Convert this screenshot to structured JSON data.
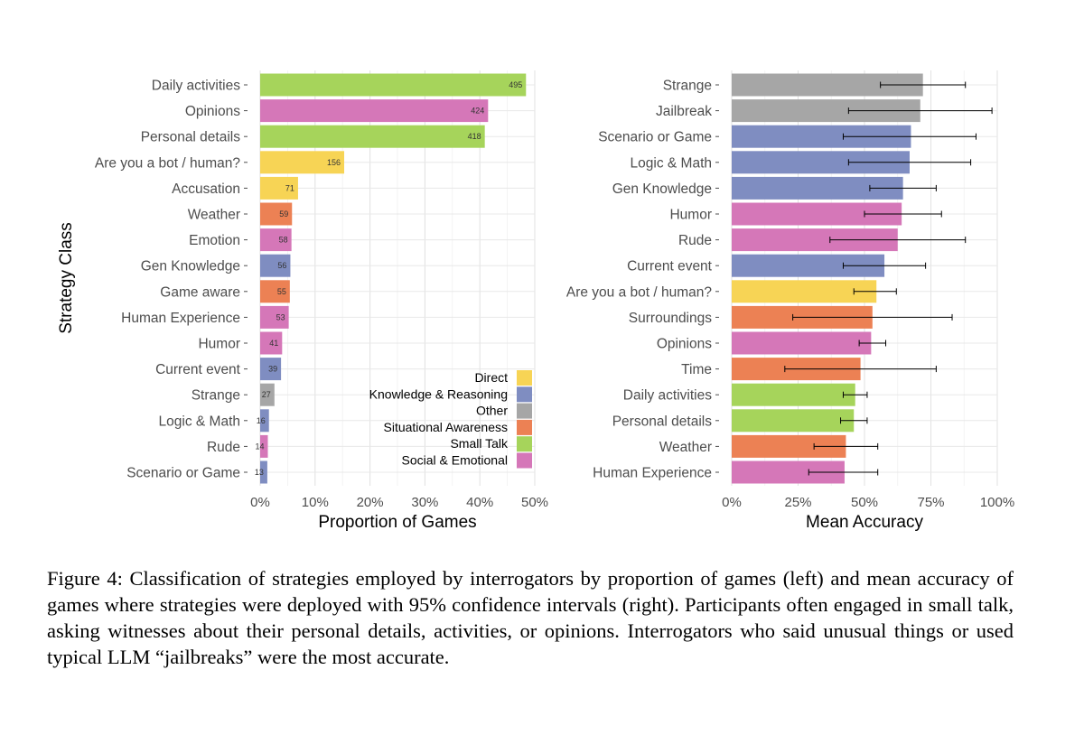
{
  "colors": {
    "Direct": "#f7d455",
    "Knowledge & Reasoning": "#7f8dc1",
    "Other": "#a6a6a6",
    "Situational Awareness": "#ec8154",
    "Small Talk": "#a6d45b",
    "Social & Emotional": "#d577b8"
  },
  "chart_data": [
    {
      "type": "bar",
      "orientation": "horizontal",
      "xlabel": "Proportion of Games",
      "ylabel": "Strategy Class",
      "xlim": [
        0,
        0.5
      ],
      "x_ticks": [
        "0%",
        "10%",
        "20%",
        "30%",
        "40%",
        "50%"
      ],
      "grid": true,
      "legend": {
        "placement": "bottom-right",
        "entries": [
          "Direct",
          "Knowledge & Reasoning",
          "Other",
          "Situational Awareness",
          "Small Talk",
          "Social & Emotional"
        ]
      },
      "bars": [
        {
          "label": "Daily activities",
          "count": 495,
          "value": 0.484,
          "group": "Small Talk"
        },
        {
          "label": "Opinions",
          "count": 424,
          "value": 0.415,
          "group": "Social & Emotional"
        },
        {
          "label": "Personal details",
          "count": 418,
          "value": 0.409,
          "group": "Small Talk"
        },
        {
          "label": "Are you a bot / human?",
          "count": 156,
          "value": 0.153,
          "group": "Direct"
        },
        {
          "label": "Accusation",
          "count": 71,
          "value": 0.069,
          "group": "Direct"
        },
        {
          "label": "Weather",
          "count": 59,
          "value": 0.058,
          "group": "Situational Awareness"
        },
        {
          "label": "Emotion",
          "count": 58,
          "value": 0.057,
          "group": "Social & Emotional"
        },
        {
          "label": "Gen Knowledge",
          "count": 56,
          "value": 0.055,
          "group": "Knowledge & Reasoning"
        },
        {
          "label": "Game aware",
          "count": 55,
          "value": 0.054,
          "group": "Situational Awareness"
        },
        {
          "label": "Human Experience",
          "count": 53,
          "value": 0.052,
          "group": "Social & Emotional"
        },
        {
          "label": "Humor",
          "count": 41,
          "value": 0.04,
          "group": "Social & Emotional"
        },
        {
          "label": "Current event",
          "count": 39,
          "value": 0.038,
          "group": "Knowledge & Reasoning"
        },
        {
          "label": "Strange",
          "count": 27,
          "value": 0.026,
          "group": "Other"
        },
        {
          "label": "Logic & Math",
          "count": 16,
          "value": 0.016,
          "group": "Knowledge & Reasoning"
        },
        {
          "label": "Rude",
          "count": 14,
          "value": 0.014,
          "group": "Social & Emotional"
        },
        {
          "label": "Scenario or Game",
          "count": 13,
          "value": 0.013,
          "group": "Knowledge & Reasoning"
        }
      ]
    },
    {
      "type": "bar",
      "orientation": "horizontal",
      "xlabel": "Mean Accuracy",
      "xlim": [
        0,
        1.0
      ],
      "x_ticks": [
        "0%",
        "25%",
        "50%",
        "75%",
        "100%"
      ],
      "grid": true,
      "error_bars": "95% confidence intervals",
      "bars": [
        {
          "label": "Strange",
          "value": 0.72,
          "ci": [
            0.56,
            0.88
          ],
          "group": "Other"
        },
        {
          "label": "Jailbreak",
          "value": 0.71,
          "ci": [
            0.44,
            0.98
          ],
          "group": "Other"
        },
        {
          "label": "Scenario or Game",
          "value": 0.675,
          "ci": [
            0.42,
            0.92
          ],
          "group": "Knowledge & Reasoning"
        },
        {
          "label": "Logic & Math",
          "value": 0.67,
          "ci": [
            0.44,
            0.9
          ],
          "group": "Knowledge & Reasoning"
        },
        {
          "label": "Gen Knowledge",
          "value": 0.645,
          "ci": [
            0.52,
            0.77
          ],
          "group": "Knowledge & Reasoning"
        },
        {
          "label": "Humor",
          "value": 0.64,
          "ci": [
            0.5,
            0.79
          ],
          "group": "Social & Emotional"
        },
        {
          "label": "Rude",
          "value": 0.625,
          "ci": [
            0.37,
            0.88
          ],
          "group": "Social & Emotional"
        },
        {
          "label": "Current event",
          "value": 0.575,
          "ci": [
            0.42,
            0.73
          ],
          "group": "Knowledge & Reasoning"
        },
        {
          "label": "Are you a bot / human?",
          "value": 0.545,
          "ci": [
            0.46,
            0.62
          ],
          "group": "Direct"
        },
        {
          "label": "Surroundings",
          "value": 0.53,
          "ci": [
            0.23,
            0.83
          ],
          "group": "Situational Awareness"
        },
        {
          "label": "Opinions",
          "value": 0.525,
          "ci": [
            0.48,
            0.58
          ],
          "group": "Social & Emotional"
        },
        {
          "label": "Time",
          "value": 0.485,
          "ci": [
            0.2,
            0.77
          ],
          "group": "Situational Awareness"
        },
        {
          "label": "Daily activities",
          "value": 0.465,
          "ci": [
            0.42,
            0.51
          ],
          "group": "Small Talk"
        },
        {
          "label": "Personal details",
          "value": 0.46,
          "ci": [
            0.41,
            0.51
          ],
          "group": "Small Talk"
        },
        {
          "label": "Weather",
          "value": 0.43,
          "ci": [
            0.31,
            0.55
          ],
          "group": "Situational Awareness"
        },
        {
          "label": "Human Experience",
          "value": 0.425,
          "ci": [
            0.29,
            0.55
          ],
          "group": "Social & Emotional"
        }
      ]
    }
  ],
  "caption": "Figure 4: Classification of strategies employed by interrogators by proportion of games (left) and mean accuracy of games where strategies were deployed with 95% confidence intervals (right). Participants often engaged in small talk, asking witnesses about their personal details, activities, or opinions. Interrogators who said unusual things or used typical LLM “jailbreaks” were the most accurate."
}
